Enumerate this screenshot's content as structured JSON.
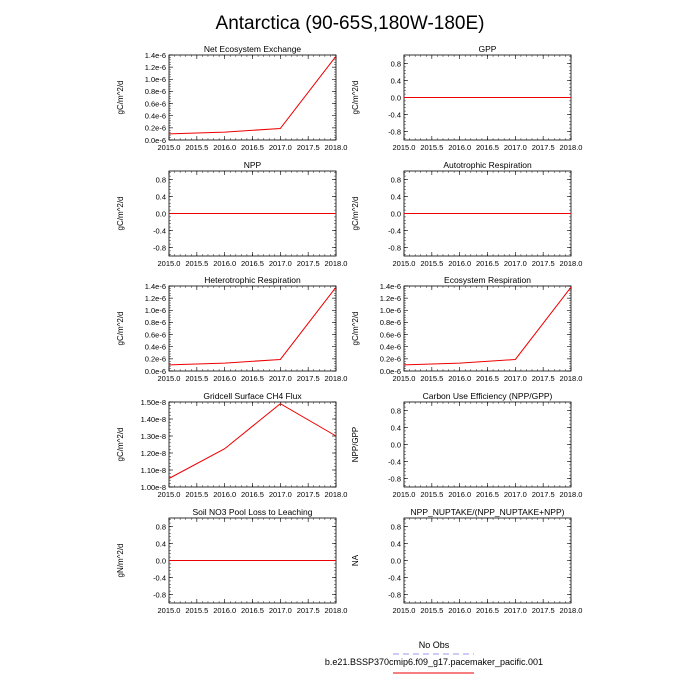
{
  "title": "Antarctica (90-65S,180W-180E)",
  "legend": {
    "obs_label": "No Obs",
    "obs_color": "#9999ee",
    "model_label": "b.e21.BSSP370cmip6.f09_g17.pacemaker_pacific.001",
    "model_color": "#ee0000"
  },
  "chart_data": [
    {
      "type": "line",
      "title": "Net Ecosystem Exchange",
      "ylabel": "gC/m^2/d",
      "x": [
        2015,
        2016,
        2017,
        2018
      ],
      "series": [
        {
          "values": [
            1e-07,
            1.3e-07,
            1.9e-07,
            1.38e-06
          ]
        }
      ],
      "xlim": [
        2015,
        2018
      ],
      "ylim": [
        0,
        1.4e-06
      ],
      "yticks": [
        "0.0e-6",
        "0.2e-6",
        "0.4e-6",
        "0.6e-6",
        "0.8e-6",
        "1.0e-6",
        "1.2e-6",
        "1.4e-6"
      ],
      "ytick_values": [
        0,
        2e-07,
        4e-07,
        6e-07,
        8e-07,
        1e-06,
        1.2e-06,
        1.4e-06
      ],
      "xticks": [
        "2015.0",
        "2015.5",
        "2016.0",
        "2016.5",
        "2017.0",
        "2017.5",
        "2018.0"
      ]
    },
    {
      "type": "line",
      "title": "GPP",
      "ylabel": "gC/m^2/d",
      "x": [
        2015,
        2016,
        2017,
        2018
      ],
      "series": [
        {
          "values": [
            0,
            0,
            0,
            0
          ]
        }
      ],
      "xlim": [
        2015,
        2018
      ],
      "ylim": [
        -1,
        1
      ],
      "yticks": [
        "-0.8",
        "-0.4",
        "0.0",
        "0.4",
        "0.8"
      ],
      "ytick_values": [
        -0.8,
        -0.4,
        0,
        0.4,
        0.8
      ],
      "xticks": [
        "2015.0",
        "2015.5",
        "2016.0",
        "2016.5",
        "2017.0",
        "2017.5",
        "2018.0"
      ]
    },
    {
      "type": "line",
      "title": "NPP",
      "ylabel": "gC/m^2/d",
      "x": [
        2015,
        2016,
        2017,
        2018
      ],
      "series": [
        {
          "values": [
            0,
            0,
            0,
            0
          ]
        }
      ],
      "xlim": [
        2015,
        2018
      ],
      "ylim": [
        -1,
        1
      ],
      "yticks": [
        "-0.8",
        "-0.4",
        "0.0",
        "0.4",
        "0.8"
      ],
      "ytick_values": [
        -0.8,
        -0.4,
        0,
        0.4,
        0.8
      ],
      "xticks": [
        "2015.0",
        "2015.5",
        "2016.0",
        "2016.5",
        "2017.0",
        "2017.5",
        "2018.0"
      ]
    },
    {
      "type": "line",
      "title": "Autotrophic Respiration",
      "ylabel": "gC/m^2/d",
      "x": [
        2015,
        2016,
        2017,
        2018
      ],
      "series": [
        {
          "values": [
            0,
            0,
            0,
            0
          ]
        }
      ],
      "xlim": [
        2015,
        2018
      ],
      "ylim": [
        -1,
        1
      ],
      "yticks": [
        "-0.8",
        "-0.4",
        "0.0",
        "0.4",
        "0.8"
      ],
      "ytick_values": [
        -0.8,
        -0.4,
        0,
        0.4,
        0.8
      ],
      "xticks": [
        "2015.0",
        "2015.5",
        "2016.0",
        "2016.5",
        "2017.0",
        "2017.5",
        "2018.0"
      ]
    },
    {
      "type": "line",
      "title": "Heterotrophic Respiration",
      "ylabel": "gC/m^2/d",
      "x": [
        2015,
        2016,
        2017,
        2018
      ],
      "series": [
        {
          "values": [
            1e-07,
            1.3e-07,
            1.9e-07,
            1.38e-06
          ]
        }
      ],
      "xlim": [
        2015,
        2018
      ],
      "ylim": [
        0,
        1.4e-06
      ],
      "yticks": [
        "0.0e-6",
        "0.2e-6",
        "0.4e-6",
        "0.6e-6",
        "0.8e-6",
        "1.0e-6",
        "1.2e-6",
        "1.4e-6"
      ],
      "ytick_values": [
        0,
        2e-07,
        4e-07,
        6e-07,
        8e-07,
        1e-06,
        1.2e-06,
        1.4e-06
      ],
      "xticks": [
        "2015.0",
        "2015.5",
        "2016.0",
        "2016.5",
        "2017.0",
        "2017.5",
        "2018.0"
      ]
    },
    {
      "type": "line",
      "title": "Ecosystem Respiration",
      "ylabel": "gC/m^2/d",
      "x": [
        2015,
        2016,
        2017,
        2018
      ],
      "series": [
        {
          "values": [
            1e-07,
            1.3e-07,
            1.9e-07,
            1.38e-06
          ]
        }
      ],
      "xlim": [
        2015,
        2018
      ],
      "ylim": [
        0,
        1.4e-06
      ],
      "yticks": [
        "0.0e-6",
        "0.2e-6",
        "0.4e-6",
        "0.6e-6",
        "0.8e-6",
        "1.0e-6",
        "1.2e-6",
        "1.4e-6"
      ],
      "ytick_values": [
        0,
        2e-07,
        4e-07,
        6e-07,
        8e-07,
        1e-06,
        1.2e-06,
        1.4e-06
      ],
      "xticks": [
        "2015.0",
        "2015.5",
        "2016.0",
        "2016.5",
        "2017.0",
        "2017.5",
        "2018.0"
      ]
    },
    {
      "type": "line",
      "title": "Gridcell Surface CH4 Flux",
      "ylabel": "gC/m^2/d",
      "x": [
        2015,
        2016,
        2017,
        2018
      ],
      "series": [
        {
          "values": [
            1.05e-08,
            1.225e-08,
            1.49e-08,
            1.3e-08
          ]
        }
      ],
      "xlim": [
        2015,
        2018
      ],
      "ylim": [
        1e-08,
        1.5e-08
      ],
      "yticks": [
        "1.00e-8",
        "1.10e-8",
        "1.20e-8",
        "1.30e-8",
        "1.40e-8",
        "1.50e-8"
      ],
      "ytick_values": [
        1e-08,
        1.1e-08,
        1.2e-08,
        1.3e-08,
        1.4e-08,
        1.5e-08
      ],
      "xticks": [
        "2015.0",
        "2015.5",
        "2016.0",
        "2016.5",
        "2017.0",
        "2017.5",
        "2018.0"
      ]
    },
    {
      "type": "line",
      "title": "Carbon Use Efficiency (NPP/GPP)",
      "ylabel": "NPP/GPP",
      "x": [],
      "series": [],
      "xlim": [
        2015,
        2018
      ],
      "ylim": [
        -1,
        1
      ],
      "yticks": [
        "-0.8",
        "-0.4",
        "0.0",
        "0.4",
        "0.8"
      ],
      "ytick_values": [
        -0.8,
        -0.4,
        0,
        0.4,
        0.8
      ],
      "xticks": [
        "2015.0",
        "2015.5",
        "2016.0",
        "2016.5",
        "2017.0",
        "2017.5",
        "2018.0"
      ]
    },
    {
      "type": "line",
      "title": "Soil NO3 Pool Loss to Leaching",
      "ylabel": "gN/m^2/d",
      "x": [
        2015,
        2016,
        2017,
        2018
      ],
      "series": [
        {
          "values": [
            0,
            0,
            0,
            0
          ]
        }
      ],
      "xlim": [
        2015,
        2018
      ],
      "ylim": [
        -1,
        1
      ],
      "yticks": [
        "-0.8",
        "-0.4",
        "0.0",
        "0.4",
        "0.8"
      ],
      "ytick_values": [
        -0.8,
        -0.4,
        0,
        0.4,
        0.8
      ],
      "xticks": [
        "2015.0",
        "2015.5",
        "2016.0",
        "2016.5",
        "2017.0",
        "2017.5",
        "2018.0"
      ]
    },
    {
      "type": "line",
      "title": "NPP_NUPTAKE/(NPP_NUPTAKE+NPP)",
      "ylabel": "NA",
      "x": [],
      "series": [],
      "xlim": [
        2015,
        2018
      ],
      "ylim": [
        -1,
        1
      ],
      "yticks": [
        "-0.8",
        "-0.4",
        "0.0",
        "0.4",
        "0.8"
      ],
      "ytick_values": [
        -0.8,
        -0.4,
        0,
        0.4,
        0.8
      ],
      "xticks": [
        "2015.0",
        "2015.5",
        "2016.0",
        "2016.5",
        "2017.0",
        "2017.5",
        "2018.0"
      ]
    }
  ]
}
